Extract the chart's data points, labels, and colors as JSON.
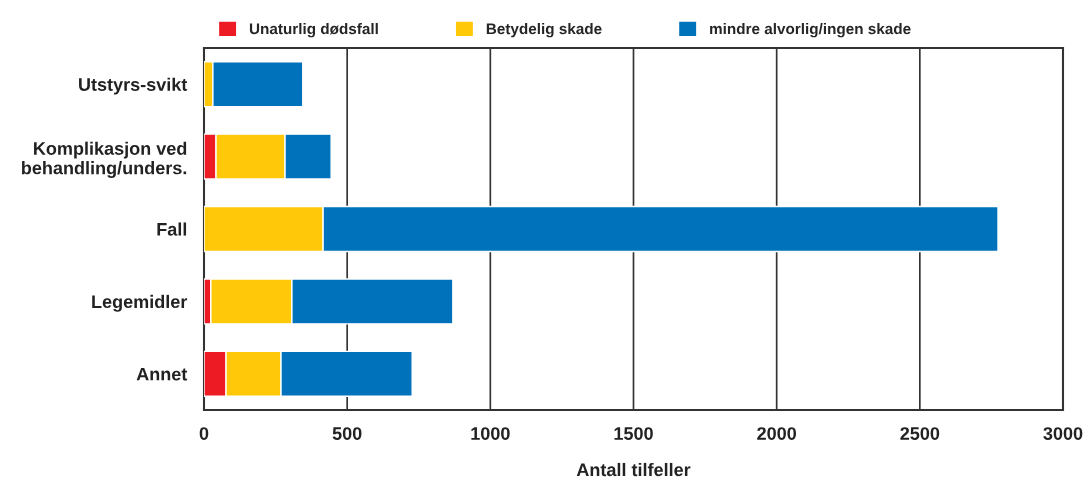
{
  "chart_data": {
    "type": "bar",
    "orientation": "horizontal",
    "stacked": true,
    "categories": [
      "Utstyrs-svikt",
      "Komplikasjon ved\nbehandling/unders.",
      "Fall",
      "Legemidler",
      "Annet"
    ],
    "series": [
      {
        "name": "Unaturlig dødsfall",
        "color": "#ed1c24",
        "values": [
          0,
          42,
          0,
          24,
          77
        ]
      },
      {
        "name": "Betydelig skade",
        "color": "#ffc90a",
        "values": [
          31,
          241,
          416,
          283,
          192
        ]
      },
      {
        "name": "mindre alvorlig/ingen skade",
        "color": "#0072bc",
        "values": [
          314,
          161,
          2357,
          562,
          458
        ]
      }
    ],
    "xlabel": "Antall tilfeller",
    "xlim": [
      0,
      3000
    ],
    "xticks": [
      0,
      500,
      1000,
      1500,
      2000,
      2500,
      3000
    ],
    "grid": "x",
    "legend": "top"
  }
}
